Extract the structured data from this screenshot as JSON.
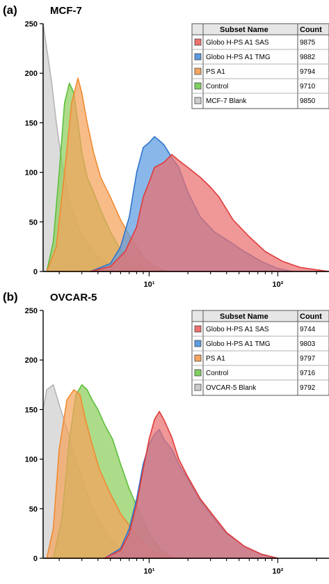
{
  "panels": [
    {
      "letter": "(a)",
      "title": "MCF-7",
      "legend": {
        "header_name": "Subset Name",
        "header_count": "Count",
        "rows": [
          {
            "name": "Globo H-PS A1 SAS",
            "count": "9875",
            "color": "#f07070"
          },
          {
            "name": "Globo H-PS A1 TMG",
            "count": "9882",
            "color": "#5b9be0"
          },
          {
            "name": "PS A1",
            "count": "9794",
            "color": "#f5a560"
          },
          {
            "name": "Control",
            "count": "9710",
            "color": "#7fcf60"
          },
          {
            "name": "MCF-7 Blank",
            "count": "9850",
            "color": "#cccccc"
          }
        ]
      }
    },
    {
      "letter": "(b)",
      "title": "OVCAR-5",
      "legend": {
        "header_name": "Subset Name",
        "header_count": "Count",
        "rows": [
          {
            "name": "Globo H-PS A1 SAS",
            "count": "9744",
            "color": "#f07070"
          },
          {
            "name": "Globo H-PS A1 TMG",
            "count": "9803",
            "color": "#5b9be0"
          },
          {
            "name": "PS A1",
            "count": "9797",
            "color": "#f5a560"
          },
          {
            "name": "Control",
            "count": "9716",
            "color": "#7fcf60"
          },
          {
            "name": "OVCAR-5 Blank",
            "count": "9792",
            "color": "#cccccc"
          }
        ]
      }
    }
  ],
  "chart_data": [
    {
      "type": "area",
      "title": "MCF-7",
      "y_ticks": [
        "0",
        "50",
        "100",
        "150",
        "200",
        "250"
      ],
      "x_ticks": [
        "10¹",
        "10²"
      ],
      "x_scale": "log",
      "xlim": [
        1.5,
        250
      ],
      "ylim": [
        0,
        250
      ],
      "series": [
        {
          "name": "MCF-7 Blank",
          "color": "#cfcfcf",
          "stroke": "#b5b5b5",
          "x": [
            1.5,
            1.6,
            1.75,
            1.9,
            2.1,
            2.4,
            2.8,
            3.3,
            4,
            5,
            6.5,
            8,
            10
          ],
          "y": [
            250,
            225,
            190,
            150,
            110,
            70,
            45,
            28,
            15,
            6,
            2,
            1,
            0
          ]
        },
        {
          "name": "Control",
          "color": "#8ccf5c",
          "stroke": "#5cbf3c",
          "x": [
            1.6,
            1.8,
            2.0,
            2.2,
            2.4,
            2.6,
            2.8,
            3.0,
            3.3,
            3.7,
            4.2,
            5,
            6,
            7.5,
            9,
            11,
            14
          ],
          "y": [
            0,
            30,
            100,
            170,
            190,
            180,
            150,
            120,
            95,
            80,
            62,
            40,
            22,
            10,
            5,
            2,
            0
          ]
        },
        {
          "name": "PS A1",
          "color": "#f5a25c",
          "stroke": "#f08a30",
          "x": [
            1.6,
            1.9,
            2.2,
            2.5,
            2.8,
            3.0,
            3.3,
            3.7,
            4.2,
            5,
            6,
            7.5,
            9,
            11,
            14
          ],
          "y": [
            0,
            25,
            100,
            170,
            195,
            180,
            150,
            120,
            95,
            75,
            52,
            30,
            15,
            5,
            0
          ]
        },
        {
          "name": "Globo H-PS A1 TMG",
          "color": "#5b9be0",
          "stroke": "#2f74cc",
          "x": [
            3.5,
            5,
            6,
            7,
            8,
            9,
            10,
            11,
            12,
            13,
            15,
            17,
            20,
            25,
            32,
            40,
            55,
            75,
            100,
            130
          ],
          "y": [
            0,
            8,
            25,
            55,
            100,
            125,
            130,
            136,
            132,
            128,
            115,
            105,
            80,
            55,
            40,
            32,
            20,
            10,
            3,
            0
          ]
        },
        {
          "name": "Globo H-PS A1 SAS",
          "color": "#ea6f6f",
          "stroke": "#e03a3a",
          "x": [
            3.5,
            5,
            6.5,
            8,
            9,
            10,
            11,
            13,
            15,
            17,
            20,
            25,
            30,
            35,
            45,
            60,
            80,
            110,
            150,
            250
          ],
          "y": [
            0,
            5,
            20,
            45,
            75,
            90,
            105,
            110,
            118,
            112,
            105,
            95,
            85,
            75,
            52,
            35,
            20,
            10,
            4,
            0
          ]
        }
      ]
    },
    {
      "type": "area",
      "title": "OVCAR-5",
      "y_ticks": [
        "0",
        "50",
        "100",
        "150",
        "200",
        "250"
      ],
      "x_ticks": [
        "10¹",
        "10²"
      ],
      "x_scale": "log",
      "xlim": [
        1.5,
        250
      ],
      "ylim": [
        0,
        250
      ],
      "series": [
        {
          "name": "OVCAR-5 Blank",
          "color": "#cfcfcf",
          "stroke": "#b5b5b5",
          "x": [
            1.5,
            1.6,
            1.8,
            2.0,
            2.3,
            2.6,
            3.0,
            3.5,
            4.2,
            5,
            6.5,
            8,
            10
          ],
          "y": [
            150,
            170,
            175,
            155,
            130,
            105,
            80,
            55,
            35,
            18,
            6,
            2,
            0
          ]
        },
        {
          "name": "Control",
          "color": "#8ccf5c",
          "stroke": "#5cbf3c",
          "x": [
            1.8,
            2.1,
            2.4,
            2.7,
            3.0,
            3.3,
            3.6,
            4.0,
            4.5,
            5.2,
            6,
            7,
            8.5,
            10,
            12,
            15
          ],
          "y": [
            0,
            40,
            120,
            165,
            175,
            170,
            160,
            150,
            135,
            120,
            95,
            70,
            45,
            25,
            10,
            0
          ]
        },
        {
          "name": "PS A1",
          "color": "#f5a25c",
          "stroke": "#f08a30",
          "x": [
            1.6,
            1.8,
            2.0,
            2.3,
            2.6,
            2.9,
            3.2,
            3.6,
            4.1,
            5,
            6,
            7.5,
            9,
            11,
            14,
            18
          ],
          "y": [
            0,
            30,
            110,
            160,
            170,
            165,
            140,
            115,
            90,
            65,
            45,
            28,
            15,
            6,
            2,
            0
          ]
        },
        {
          "name": "Globo H-PS A1 TMG",
          "color": "#5b9be0",
          "stroke": "#2f74cc",
          "x": [
            4.5,
            6,
            7,
            8,
            9,
            10,
            11,
            12,
            13,
            15,
            17,
            20,
            25,
            32,
            40,
            55,
            75,
            100
          ],
          "y": [
            0,
            10,
            30,
            60,
            95,
            115,
            125,
            130,
            120,
            110,
            95,
            80,
            58,
            40,
            25,
            12,
            4,
            0
          ]
        },
        {
          "name": "Globo H-PS A1 SAS",
          "color": "#ea6f6f",
          "stroke": "#e03a3a",
          "x": [
            4.5,
            6,
            7,
            8,
            9,
            10,
            11,
            12,
            13,
            15,
            17,
            20,
            25,
            32,
            40,
            55,
            75,
            100
          ],
          "y": [
            0,
            8,
            25,
            55,
            90,
            120,
            140,
            148,
            140,
            122,
            100,
            82,
            60,
            42,
            26,
            12,
            4,
            0
          ]
        }
      ]
    }
  ]
}
